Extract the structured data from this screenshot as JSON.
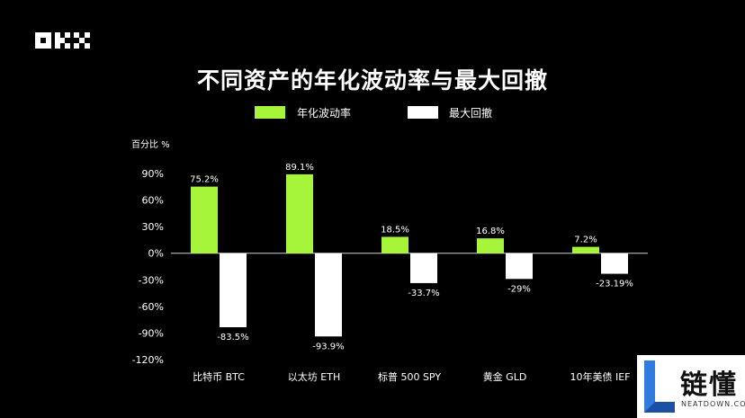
{
  "brand": {
    "logo_text": "OKX"
  },
  "chart_data": {
    "type": "bar",
    "title": "不同资产的年化波动率与最大回撤",
    "ylabel": "百分比 %",
    "ylim": [
      -120,
      90
    ],
    "yticks": [
      90,
      60,
      30,
      0,
      -30,
      -60,
      -90,
      -120
    ],
    "ytick_labels": [
      "90%",
      "60%",
      "30%",
      "0%",
      "-30%",
      "-60%",
      "-90%",
      "-120%"
    ],
    "categories": [
      "比特币 BTC",
      "以太坊 ETH",
      "标普 500 SPY",
      "黄金 GLD",
      "10年美债 IEF"
    ],
    "series": [
      {
        "name": "年化波动率",
        "color": "#a6f53a",
        "values": [
          75.2,
          89.1,
          18.5,
          16.8,
          7.2
        ],
        "labels": [
          "75.2%",
          "89.1%",
          "18.5%",
          "16.8%",
          "7.2%"
        ]
      },
      {
        "name": "最大回撤",
        "color": "#ffffff",
        "values": [
          -83.5,
          -93.9,
          -33.7,
          -29,
          -23.19
        ],
        "labels": [
          "-83.5%",
          "-93.9%",
          "-33.7%",
          "-29%",
          "-23.19%"
        ]
      }
    ],
    "legend_position": "top-center",
    "grid": false
  },
  "watermark": {
    "text": "链懂",
    "sub": "NEATDOWN.COM"
  }
}
